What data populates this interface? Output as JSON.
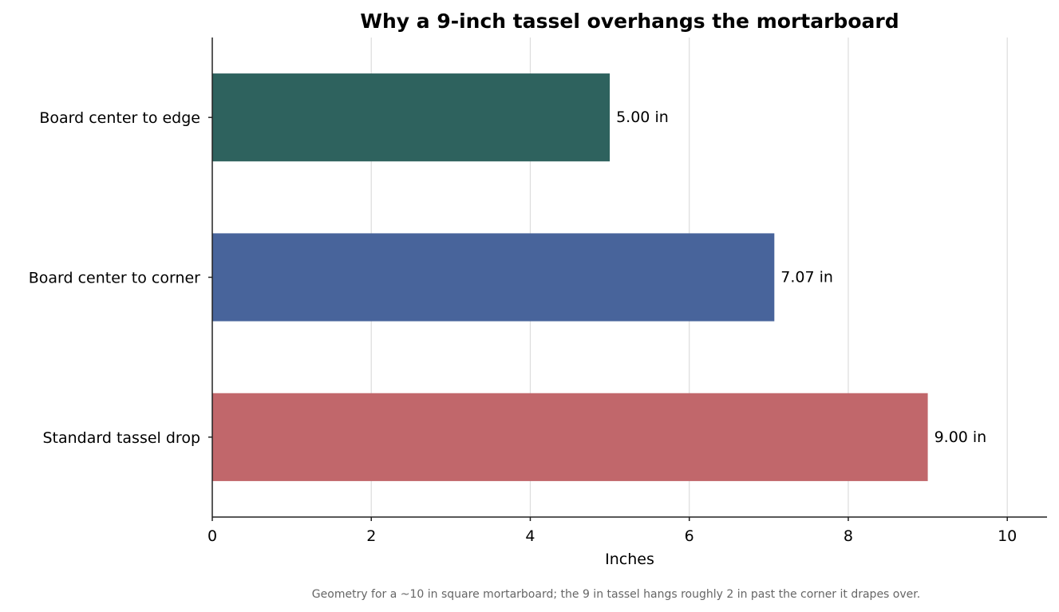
{
  "chart_data": {
    "type": "bar",
    "orientation": "horizontal",
    "title": "Why a 9-inch tassel overhangs the mortarboard",
    "xlabel": "Inches",
    "ylabel": "",
    "xlim": [
      0,
      10.5
    ],
    "xticks": [
      0,
      2,
      4,
      6,
      8,
      10
    ],
    "grid": "vertical",
    "categories": [
      "Board center to edge",
      "Board center to corner",
      "Standard tassel drop"
    ],
    "values": [
      5.0,
      7.07,
      9.0
    ],
    "value_labels": [
      "5.00 in",
      "7.07 in",
      "9.00 in"
    ],
    "colors": [
      "#2e625e",
      "#48649b",
      "#c1676b"
    ],
    "caption": "Geometry for a ~10 in square mortarboard; the 9 in tassel hangs roughly 2 in past the corner it drapes over."
  }
}
